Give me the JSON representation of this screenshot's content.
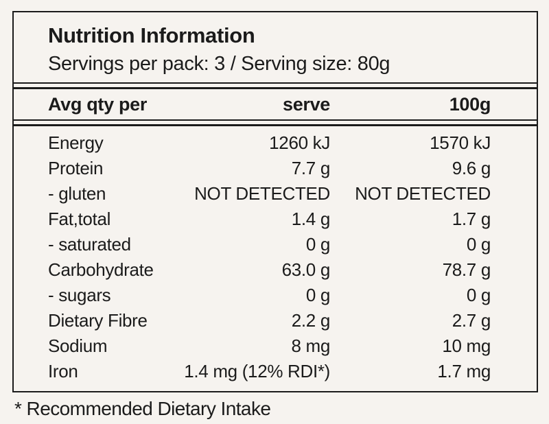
{
  "colors": {
    "paper": "#f6f3ef",
    "ink": "#1b1b1b"
  },
  "header": {
    "title": "Nutrition Information",
    "servings_line": "Servings per pack: 3 / Serving size: 80g"
  },
  "columns": {
    "label": "Avg qty per",
    "serve": "serve",
    "per100g": "100g"
  },
  "rows": [
    {
      "label": "Energy",
      "serve": "1260 kJ",
      "per100g": "1570 kJ"
    },
    {
      "label": "Protein",
      "serve": "7.7 g",
      "per100g": "9.6 g"
    },
    {
      "label": "- gluten",
      "serve": "NOT DETECTED",
      "per100g": "NOT DETECTED"
    },
    {
      "label": "Fat,total",
      "serve": "1.4 g",
      "per100g": "1.7 g"
    },
    {
      "label": "- saturated",
      "serve": "0 g",
      "per100g": "0 g"
    },
    {
      "label": "Carbohydrate",
      "serve": "63.0 g",
      "per100g": "78.7 g"
    },
    {
      "label": "- sugars",
      "serve": "0 g",
      "per100g": "0 g"
    },
    {
      "label": "Dietary Fibre",
      "serve": "2.2 g",
      "per100g": "2.7 g"
    },
    {
      "label": "Sodium",
      "serve": "8 mg",
      "per100g": "10 mg"
    },
    {
      "label": "Iron",
      "serve": "1.4 mg (12% RDI*)",
      "per100g": "1.7 mg"
    }
  ],
  "footnote": "* Recommended Dietary Intake"
}
